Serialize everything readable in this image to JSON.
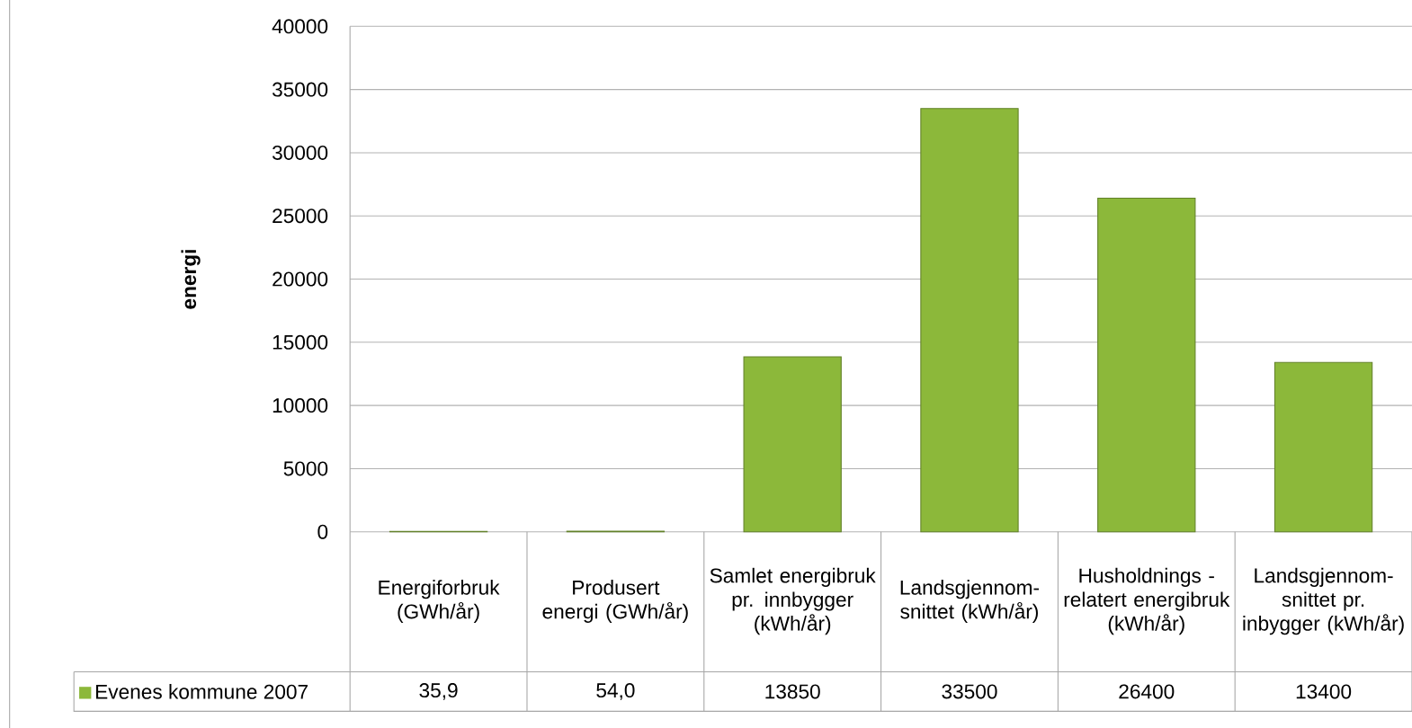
{
  "chart_data": {
    "type": "bar",
    "ylabel": "energi",
    "categories": [
      "Energiforbruk (GWh/år)",
      "Produsert energi (GWh/år)",
      "Samlet energibruk pr. innbygger (kWh/år)",
      "Landsgjennom-snittet (kWh/år)",
      "Husholdnings - relatert energibruk (kWh/år)",
      "Landsgjennom-snittet pr. inbygger (kWh/år)"
    ],
    "series": [
      {
        "name": "Evenes kommune 2007",
        "color": "#8cb83a",
        "values": [
          35.9,
          54.0,
          13850,
          33500,
          26400,
          13400
        ],
        "value_labels": [
          "35,9",
          "54,0",
          "13850",
          "33500",
          "26400",
          "13400"
        ]
      }
    ],
    "ylim": [
      0,
      40000
    ],
    "yticks": [
      0,
      5000,
      10000,
      15000,
      20000,
      25000,
      30000,
      35000,
      40000
    ],
    "grid": "y",
    "legend": "bottom"
  }
}
